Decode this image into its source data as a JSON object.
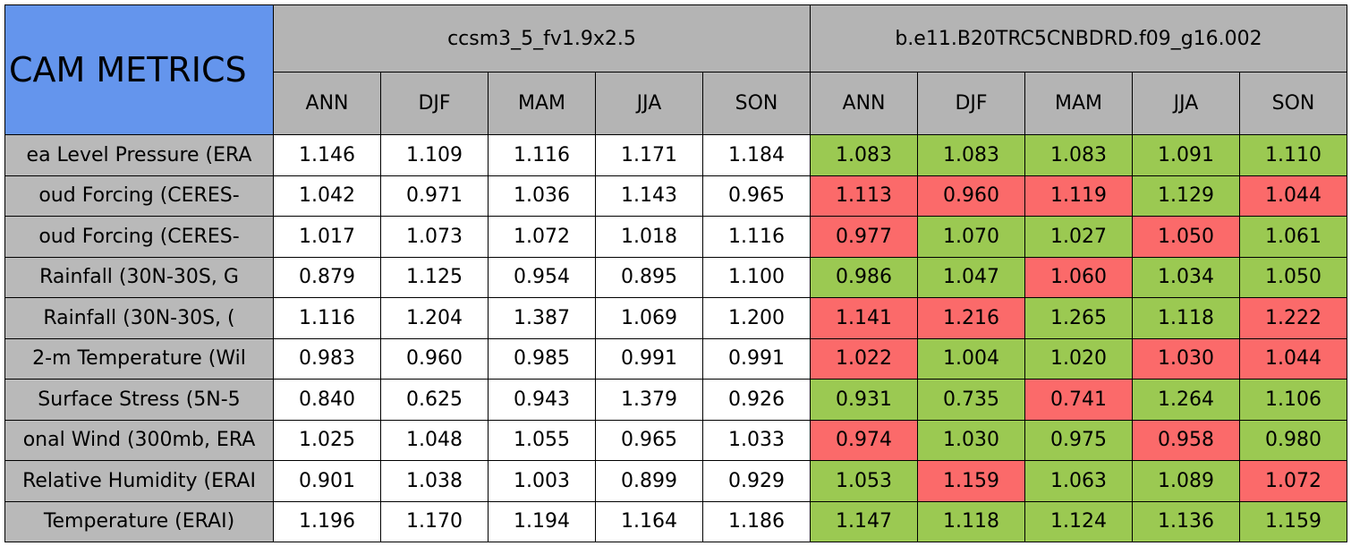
{
  "table": {
    "title": "CAM METRICS",
    "groups": [
      "ccsm3_5_fv1.9x2.5",
      "b.e11.B20TRC5CNBDRD.f09_g16.002"
    ],
    "seasons": [
      [
        "ANN",
        "DJF",
        "MAM",
        "JJA",
        "SON"
      ],
      [
        "ANN",
        "DJF",
        "MAM",
        "JJA",
        "SON"
      ]
    ],
    "rows": [
      {
        "label": "ea Level Pressure (ERA",
        "values": [
          "1.146",
          "1.109",
          "1.116",
          "1.171",
          "1.184",
          "1.083",
          "1.083",
          "1.083",
          "1.091",
          "1.110"
        ],
        "colors": [
          "#ffffff",
          "#ffffff",
          "#ffffff",
          "#ffffff",
          "#ffffff",
          "#9bc952",
          "#9bc952",
          "#9bc952",
          "#9bc952",
          "#9bc952"
        ]
      },
      {
        "label": "oud Forcing (CERES-",
        "values": [
          "1.042",
          "0.971",
          "1.036",
          "1.143",
          "0.965",
          "1.113",
          "0.960",
          "1.119",
          "1.129",
          "1.044"
        ],
        "colors": [
          "#ffffff",
          "#ffffff",
          "#ffffff",
          "#ffffff",
          "#ffffff",
          "#fb6a6a",
          "#fb6a6a",
          "#fb6a6a",
          "#9bc952",
          "#fb6a6a"
        ]
      },
      {
        "label": "oud Forcing (CERES-",
        "values": [
          "1.017",
          "1.073",
          "1.072",
          "1.018",
          "1.116",
          "0.977",
          "1.070",
          "1.027",
          "1.050",
          "1.061"
        ],
        "colors": [
          "#ffffff",
          "#ffffff",
          "#ffffff",
          "#ffffff",
          "#ffffff",
          "#fb6a6a",
          "#9bc952",
          "#9bc952",
          "#fb6a6a",
          "#9bc952"
        ]
      },
      {
        "label": "Rainfall (30N-30S, G",
        "values": [
          "0.879",
          "1.125",
          "0.954",
          "0.895",
          "1.100",
          "0.986",
          "1.047",
          "1.060",
          "1.034",
          "1.050"
        ],
        "colors": [
          "#ffffff",
          "#ffffff",
          "#ffffff",
          "#ffffff",
          "#ffffff",
          "#9bc952",
          "#9bc952",
          "#fb6a6a",
          "#9bc952",
          "#9bc952"
        ]
      },
      {
        "label": "Rainfall (30N-30S, (",
        "values": [
          "1.116",
          "1.204",
          "1.387",
          "1.069",
          "1.200",
          "1.141",
          "1.216",
          "1.265",
          "1.118",
          "1.222"
        ],
        "colors": [
          "#ffffff",
          "#ffffff",
          "#ffffff",
          "#ffffff",
          "#ffffff",
          "#fb6a6a",
          "#fb6a6a",
          "#9bc952",
          "#9bc952",
          "#fb6a6a"
        ]
      },
      {
        "label": "2-m Temperature (Wil",
        "values": [
          "0.983",
          "0.960",
          "0.985",
          "0.991",
          "0.991",
          "1.022",
          "1.004",
          "1.020",
          "1.030",
          "1.044"
        ],
        "colors": [
          "#ffffff",
          "#ffffff",
          "#ffffff",
          "#ffffff",
          "#ffffff",
          "#fb6a6a",
          "#9bc952",
          "#9bc952",
          "#fb6a6a",
          "#fb6a6a"
        ]
      },
      {
        "label": "Surface Stress (5N-5",
        "values": [
          "0.840",
          "0.625",
          "0.943",
          "1.379",
          "0.926",
          "0.931",
          "0.735",
          "0.741",
          "1.264",
          "1.106"
        ],
        "colors": [
          "#ffffff",
          "#ffffff",
          "#ffffff",
          "#ffffff",
          "#ffffff",
          "#9bc952",
          "#9bc952",
          "#fb6a6a",
          "#9bc952",
          "#9bc952"
        ]
      },
      {
        "label": "onal Wind (300mb, ERA",
        "values": [
          "1.025",
          "1.048",
          "1.055",
          "0.965",
          "1.033",
          "0.974",
          "1.030",
          "0.975",
          "0.958",
          "0.980"
        ],
        "colors": [
          "#ffffff",
          "#ffffff",
          "#ffffff",
          "#ffffff",
          "#ffffff",
          "#fb6a6a",
          "#9bc952",
          "#9bc952",
          "#fb6a6a",
          "#9bc952"
        ]
      },
      {
        "label": "Relative Humidity (ERAI",
        "values": [
          "0.901",
          "1.038",
          "1.003",
          "0.899",
          "0.929",
          "1.053",
          "1.159",
          "1.063",
          "1.089",
          "1.072"
        ],
        "colors": [
          "#ffffff",
          "#ffffff",
          "#ffffff",
          "#ffffff",
          "#ffffff",
          "#9bc952",
          "#fb6a6a",
          "#9bc952",
          "#9bc952",
          "#fb6a6a"
        ]
      },
      {
        "label": "Temperature (ERAI)",
        "values": [
          "1.196",
          "1.170",
          "1.194",
          "1.164",
          "1.186",
          "1.147",
          "1.118",
          "1.124",
          "1.136",
          "1.159"
        ],
        "colors": [
          "#ffffff",
          "#ffffff",
          "#ffffff",
          "#ffffff",
          "#ffffff",
          "#9bc952",
          "#9bc952",
          "#9bc952",
          "#9bc952",
          "#9bc952"
        ]
      }
    ]
  }
}
